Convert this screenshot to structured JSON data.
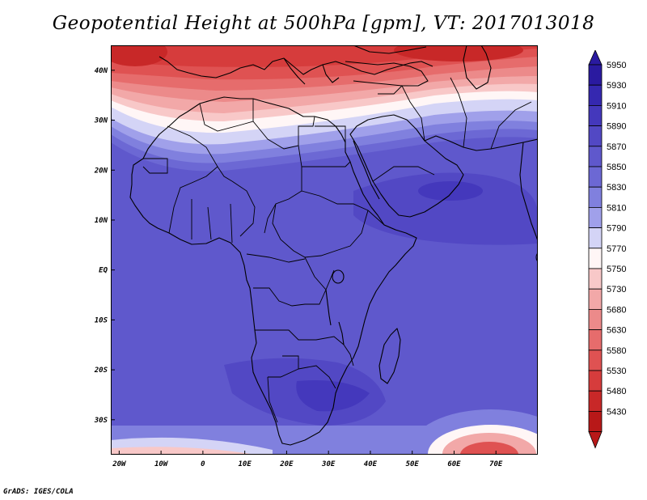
{
  "title": "Geopotential Height at 500hPa [gpm], VT: 2017013018",
  "credit": "GrADS: IGES/COLA",
  "map": {
    "lon_range": [
      -22,
      80
    ],
    "lat_range": [
      -37,
      45
    ],
    "lat_ticks": [
      {
        "value": 40,
        "label": "40N"
      },
      {
        "value": 30,
        "label": "30N"
      },
      {
        "value": 20,
        "label": "20N"
      },
      {
        "value": 10,
        "label": "10N"
      },
      {
        "value": 0,
        "label": "EQ"
      },
      {
        "value": -10,
        "label": "10S"
      },
      {
        "value": -20,
        "label": "20S"
      },
      {
        "value": -30,
        "label": "30S"
      }
    ],
    "lon_ticks": [
      {
        "value": -20,
        "label": "20W"
      },
      {
        "value": -10,
        "label": "10W"
      },
      {
        "value": 0,
        "label": "0"
      },
      {
        "value": 10,
        "label": "10E"
      },
      {
        "value": 20,
        "label": "20E"
      },
      {
        "value": 30,
        "label": "30E"
      },
      {
        "value": 40,
        "label": "40E"
      },
      {
        "value": 50,
        "label": "50E"
      },
      {
        "value": 60,
        "label": "60E"
      },
      {
        "value": 70,
        "label": "70E"
      }
    ]
  },
  "colorbar": {
    "levels": [
      "5950",
      "5930",
      "5910",
      "5890",
      "5870",
      "5850",
      "5830",
      "5810",
      "5790",
      "5770",
      "5750",
      "5730",
      "5680",
      "5630",
      "5580",
      "5530",
      "5480",
      "5430"
    ],
    "colors": [
      "#2a1aa0",
      "#3528b0",
      "#4438bc",
      "#5248c4",
      "#5f58cc",
      "#6c68d4",
      "#8080de",
      "#a0a0ea",
      "#d4d4f6",
      "#fff6f6",
      "#f8c8c8",
      "#f2a8a8",
      "#ec8a8a",
      "#e66c6c",
      "#df5252",
      "#d63c3c",
      "#c82828",
      "#b81818"
    ]
  }
}
